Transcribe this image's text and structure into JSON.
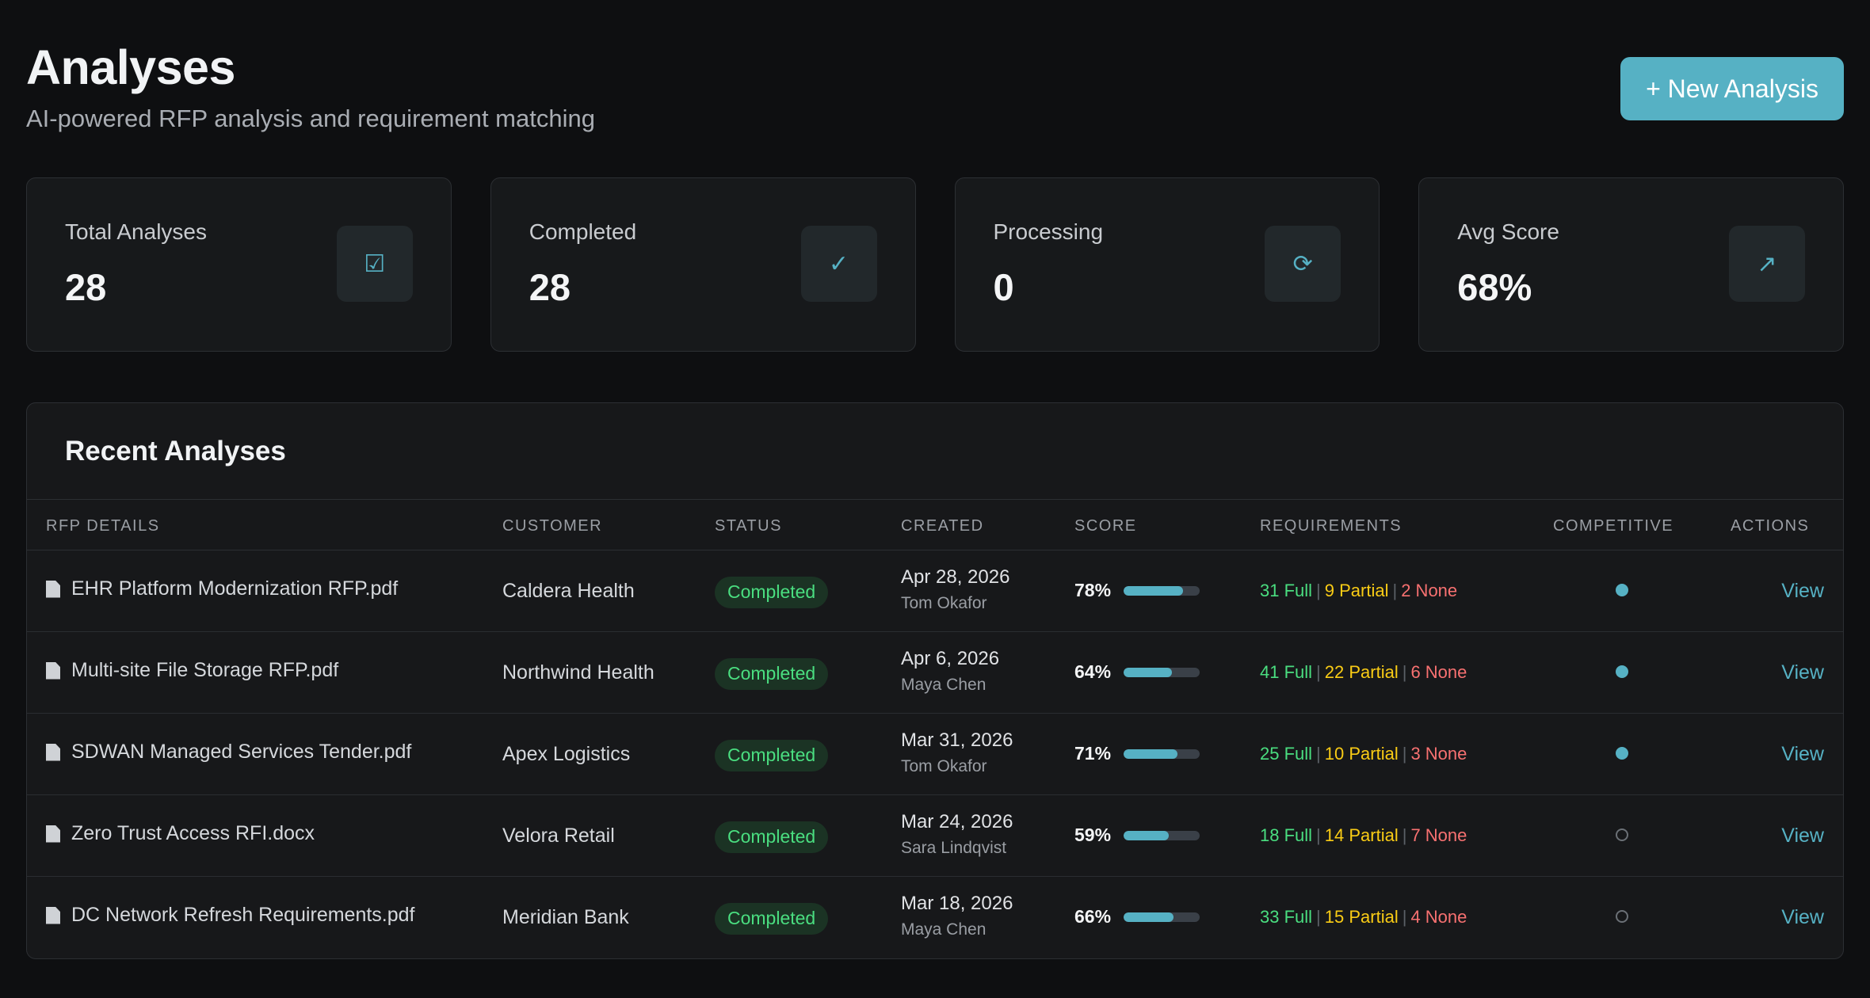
{
  "header": {
    "title": "Analyses",
    "subtitle": "AI-powered RFP analysis and requirement matching",
    "new_button_label": "+ New Analysis"
  },
  "stats": [
    {
      "label": "Total Analyses",
      "value": "28",
      "icon": "clipboard-check-icon",
      "glyph": "☑"
    },
    {
      "label": "Completed",
      "value": "28",
      "icon": "checkmark-icon",
      "glyph": "✓"
    },
    {
      "label": "Processing",
      "value": "0",
      "icon": "refresh-icon",
      "glyph": "⟳"
    },
    {
      "label": "Avg Score",
      "value": "68%",
      "icon": "trend-up-icon",
      "glyph": "↗"
    }
  ],
  "panel": {
    "title": "Recent Analyses",
    "columns": {
      "rfp": "RFP DETAILS",
      "customer": "CUSTOMER",
      "status": "STATUS",
      "created": "CREATED",
      "score": "SCORE",
      "requirements": "REQUIREMENTS",
      "competitive": "COMPETITIVE",
      "actions": "ACTIONS"
    },
    "rows": [
      {
        "file": "EHR Platform Modernization RFP.pdf",
        "customer": "Caldera Health",
        "status": "Completed",
        "date": "Apr 28, 2026",
        "by": "Tom Okafor",
        "score": "78%",
        "score_value": 78,
        "full": "31 Full",
        "partial": "9 Partial",
        "none": "2 None",
        "competitive": true,
        "action": "View"
      },
      {
        "file": "Multi-site File Storage RFP.pdf",
        "customer": "Northwind Health",
        "status": "Completed",
        "date": "Apr 6, 2026",
        "by": "Maya Chen",
        "score": "64%",
        "score_value": 64,
        "full": "41 Full",
        "partial": "22 Partial",
        "none": "6 None",
        "competitive": true,
        "action": "View"
      },
      {
        "file": "SDWAN Managed Services Tender.pdf",
        "customer": "Apex Logistics",
        "status": "Completed",
        "date": "Mar 31, 2026",
        "by": "Tom Okafor",
        "score": "71%",
        "score_value": 71,
        "full": "25 Full",
        "partial": "10 Partial",
        "none": "3 None",
        "competitive": true,
        "action": "View"
      },
      {
        "file": "Zero Trust Access RFI.docx",
        "customer": "Velora Retail",
        "status": "Completed",
        "date": "Mar 24, 2026",
        "by": "Sara Lindqvist",
        "score": "59%",
        "score_value": 59,
        "full": "18 Full",
        "partial": "14 Partial",
        "none": "7 None",
        "competitive": false,
        "action": "View"
      },
      {
        "file": "DC Network Refresh Requirements.pdf",
        "customer": "Meridian Bank",
        "status": "Completed",
        "date": "Mar 18, 2026",
        "by": "Maya Chen",
        "score": "66%",
        "score_value": 66,
        "full": "33 Full",
        "partial": "15 Partial",
        "none": "4 None",
        "competitive": false,
        "action": "View"
      }
    ]
  },
  "colors": {
    "accent": "#56b1c4",
    "full": "#4ade80",
    "partial": "#facc15",
    "none": "#f87171",
    "status_completed": "#4ade80"
  }
}
